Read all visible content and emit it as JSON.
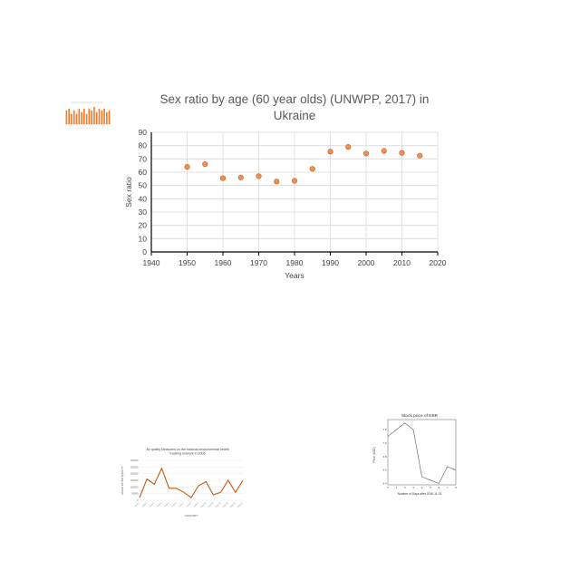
{
  "chart_data": [
    {
      "type": "scatter",
      "title": "Sex ratio by age (60 year olds) (UNWPP, 2017) in Ukraine",
      "title_lines": [
        "Sex ratio by age (60 year olds) (UNWPP, 2017) in",
        "Ukraine"
      ],
      "xlabel": "Years",
      "ylabel": "Sex ratio",
      "xlim": [
        1940,
        2020
      ],
      "ylim": [
        0,
        90
      ],
      "xticks": [
        1940,
        1950,
        1960,
        1970,
        1980,
        1990,
        2000,
        2010,
        2020
      ],
      "yticks": [
        0,
        10,
        20,
        30,
        40,
        50,
        60,
        70,
        80,
        90
      ],
      "grid": true,
      "legend": "none",
      "marker_color": "#ED7D31",
      "x": [
        1950,
        1955,
        1960,
        1965,
        1970,
        1975,
        1980,
        1985,
        1990,
        1995,
        2000,
        2005,
        2010,
        2015
      ],
      "y": [
        64,
        66,
        55.5,
        56,
        57,
        53,
        53.5,
        62.5,
        75.5,
        79,
        74,
        76,
        74.5,
        72.5
      ]
    },
    {
      "type": "bar",
      "title": "",
      "xlabel": "",
      "ylabel": "",
      "bar_color": "#ED7D31",
      "values": [
        8,
        9,
        6,
        8,
        6,
        9,
        7,
        9,
        6,
        9,
        8,
        10,
        7,
        9,
        8,
        9,
        7,
        8
      ],
      "ylim": [
        0,
        10
      ]
    },
    {
      "type": "line",
      "title": "Air quality Measures on the national environmental health tracking network in 2006",
      "title_lines": [
        "Air quality Measures on the national environmental health",
        "tracking network in 2006"
      ],
      "xlabel": "COUNTRY",
      "ylabel": "VALUE OF AIR QUALITY",
      "line_color": "#C55A11",
      "yticks": [
        0,
        50000,
        100000,
        150000,
        200000,
        250000,
        300000
      ],
      "ylim": [
        0,
        300000
      ],
      "values": [
        20000,
        160000,
        120000,
        240000,
        90000,
        90000,
        60000,
        20000,
        110000,
        140000,
        40000,
        60000,
        150000,
        60000,
        150000
      ],
      "categories": [
        "Area 1",
        "Area 2",
        "Area 3",
        "Area 4",
        "Area 5",
        "Area 6",
        "Area 7",
        "Area 8",
        "Area 9",
        "Area 10",
        "Area 11",
        "Area 12",
        "Area 13",
        "Area 14",
        "Area 15"
      ]
    },
    {
      "type": "line",
      "title": "Stock price of EBR",
      "xlabel": "Number of Days after 2016-11-01",
      "ylabel": "Price (USD)",
      "line_color": "#555555",
      "x": [
        0,
        1,
        2,
        3,
        4,
        5,
        6,
        7,
        8
      ],
      "xticks": [
        0,
        1,
        2,
        3,
        4,
        5,
        6,
        7,
        8
      ],
      "y": [
        7.1,
        7.2,
        7.3,
        7.2,
        6.5,
        6.45,
        6.4,
        6.65,
        6.6
      ],
      "yticks": [
        6.4,
        6.6,
        6.8,
        7.0,
        7.2
      ],
      "ylim": [
        6.38,
        7.35
      ]
    }
  ]
}
